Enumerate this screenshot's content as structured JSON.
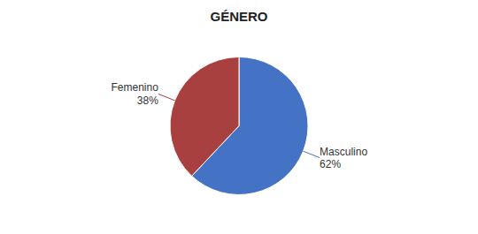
{
  "chart_data": {
    "type": "pie",
    "title": "GÉNERO",
    "categories": [
      "Masculino",
      "Femenino"
    ],
    "values": [
      62,
      38
    ],
    "value_labels": [
      "62%",
      "38%"
    ],
    "colors": [
      "#4472C4",
      "#A94040"
    ],
    "data_labels": true
  }
}
